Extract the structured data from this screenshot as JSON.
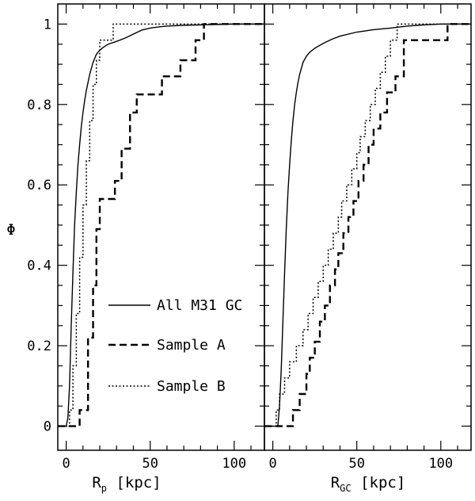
{
  "chart_data": [
    {
      "type": "line",
      "panel": "left",
      "xlabel": "R",
      "xlabel_sub": "p",
      "xlabel_unit": "[kpc]",
      "ylabel": "Φ",
      "xlim": [
        -5,
        118
      ],
      "ylim": [
        -0.06,
        1.05
      ],
      "xticks": [
        0,
        50,
        100
      ],
      "yticks": [
        0,
        0.2,
        0.4,
        0.6,
        0.8,
        1
      ],
      "ytick_labels": [
        "0",
        "0.2",
        "0.4",
        "0.6",
        "0.8",
        "1"
      ],
      "legend": {
        "placement": "center",
        "entries": [
          "All M31 GC",
          "Sample A",
          "Sample B"
        ]
      },
      "series": [
        {
          "name": "All M31 GC",
          "style": "solid",
          "step": false,
          "x": [
            0,
            1,
            2,
            3,
            4,
            5,
            6,
            7,
            8,
            9,
            10,
            11,
            12,
            13,
            14,
            15,
            16,
            17,
            18,
            20,
            22,
            25,
            30,
            35,
            40,
            45,
            50,
            55,
            60,
            70,
            80,
            90,
            100,
            118
          ],
          "y": [
            0,
            0.02,
            0.1,
            0.25,
            0.38,
            0.5,
            0.58,
            0.65,
            0.7,
            0.745,
            0.78,
            0.81,
            0.835,
            0.855,
            0.875,
            0.89,
            0.905,
            0.915,
            0.925,
            0.935,
            0.942,
            0.95,
            0.957,
            0.965,
            0.975,
            0.985,
            0.99,
            0.993,
            0.995,
            0.997,
            0.998,
            0.999,
            1.0,
            1.0
          ]
        },
        {
          "name": "Sample A",
          "style": "dashed",
          "step": true,
          "x": [
            0,
            4,
            8,
            13,
            16,
            18,
            20,
            25,
            29,
            33,
            38,
            42,
            47,
            57,
            63,
            68,
            77,
            82,
            118
          ],
          "y": [
            0,
            0.0,
            0.04,
            0.22,
            0.35,
            0.49,
            0.565,
            0.565,
            0.61,
            0.69,
            0.78,
            0.825,
            0.825,
            0.87,
            0.87,
            0.91,
            0.96,
            1.0,
            1.0
          ]
        },
        {
          "name": "Sample B",
          "style": "dotted",
          "step": true,
          "x": [
            0,
            2,
            4,
            6,
            8,
            10,
            12,
            14,
            16,
            18,
            20,
            24,
            28,
            33,
            118
          ],
          "y": [
            0,
            0.04,
            0.15,
            0.28,
            0.42,
            0.55,
            0.66,
            0.76,
            0.85,
            0.91,
            0.96,
            0.96,
            1.0,
            1.0,
            1.0
          ]
        }
      ]
    },
    {
      "type": "line",
      "panel": "right",
      "xlabel": "R",
      "xlabel_sub": "GC",
      "xlabel_unit": "[kpc]",
      "xlim": [
        -5,
        118
      ],
      "ylim": [
        -0.06,
        1.05
      ],
      "xticks": [
        0,
        50,
        100
      ],
      "series": [
        {
          "name": "All M31 GC",
          "style": "solid",
          "step": false,
          "x": [
            0,
            3,
            4,
            5,
            6,
            7,
            8,
            9,
            10,
            11,
            12,
            13,
            14,
            15,
            16,
            17,
            18,
            20,
            22,
            25,
            30,
            35,
            40,
            50,
            60,
            70,
            80,
            90,
            100,
            118
          ],
          "y": [
            0,
            0.0,
            0.05,
            0.14,
            0.26,
            0.38,
            0.49,
            0.58,
            0.65,
            0.71,
            0.76,
            0.8,
            0.83,
            0.855,
            0.875,
            0.89,
            0.905,
            0.92,
            0.93,
            0.94,
            0.952,
            0.962,
            0.97,
            0.98,
            0.986,
            0.99,
            0.995,
            0.998,
            1.0,
            1.0
          ]
        },
        {
          "name": "Sample A",
          "style": "dashed",
          "step": true,
          "x": [
            0,
            6,
            12,
            16,
            20,
            22,
            25,
            28,
            31,
            34,
            37,
            39,
            42,
            45,
            48,
            51,
            54,
            57,
            60,
            64,
            68,
            73,
            78,
            104,
            110,
            118
          ],
          "y": [
            0,
            0.0,
            0.04,
            0.08,
            0.13,
            0.17,
            0.21,
            0.26,
            0.3,
            0.35,
            0.39,
            0.43,
            0.48,
            0.52,
            0.56,
            0.61,
            0.65,
            0.7,
            0.74,
            0.78,
            0.83,
            0.87,
            0.96,
            1.0,
            1.0,
            1.0
          ]
        },
        {
          "name": "Sample B",
          "style": "dotted",
          "step": true,
          "x": [
            0,
            2,
            4,
            7,
            10,
            14,
            18,
            21,
            24,
            27,
            30,
            33,
            36,
            39,
            41,
            44,
            47,
            50,
            52,
            55,
            58,
            61,
            64,
            67,
            70,
            74,
            77,
            118
          ],
          "y": [
            0,
            0.04,
            0.08,
            0.12,
            0.16,
            0.2,
            0.24,
            0.28,
            0.32,
            0.36,
            0.4,
            0.44,
            0.48,
            0.52,
            0.56,
            0.6,
            0.64,
            0.68,
            0.72,
            0.76,
            0.8,
            0.84,
            0.88,
            0.92,
            0.96,
            1.0,
            1.0,
            1.0
          ]
        }
      ]
    }
  ]
}
